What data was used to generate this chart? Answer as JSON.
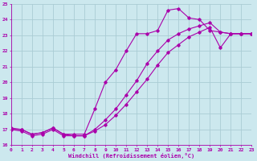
{
  "xlabel": "Windchill (Refroidissement éolien,°C)",
  "bg_color": "#cce8ee",
  "grid_color": "#aaccd4",
  "line_color": "#aa00aa",
  "xmin": 0,
  "xmax": 23,
  "ymin": 16,
  "ymax": 25,
  "line1_x": [
    0,
    1,
    2,
    3,
    4,
    5,
    6,
    7,
    8,
    9,
    10,
    11,
    12,
    13,
    14,
    15,
    16,
    17,
    18,
    19,
    20,
    21,
    22,
    23
  ],
  "line1_y": [
    17.1,
    17.0,
    16.7,
    16.8,
    17.1,
    16.7,
    16.7,
    16.7,
    18.3,
    20.0,
    20.8,
    22.0,
    23.1,
    23.1,
    23.3,
    24.6,
    24.7,
    24.1,
    24.0,
    23.3,
    23.2,
    23.1,
    23.1,
    23.1
  ],
  "line2_x": [
    0,
    1,
    2,
    3,
    4,
    5,
    6,
    7,
    8,
    9,
    10,
    11,
    12,
    13,
    14,
    15,
    16,
    17,
    18,
    19,
    20,
    21,
    22,
    23
  ],
  "line2_y": [
    17.0,
    17.0,
    16.7,
    16.8,
    17.1,
    16.7,
    16.6,
    16.6,
    17.0,
    17.6,
    18.3,
    19.2,
    20.1,
    21.2,
    22.0,
    22.7,
    23.1,
    23.4,
    23.6,
    23.8,
    23.2,
    23.1,
    23.1,
    23.1
  ],
  "line3_x": [
    0,
    1,
    2,
    3,
    4,
    5,
    6,
    7,
    8,
    9,
    10,
    11,
    12,
    13,
    14,
    15,
    16,
    17,
    18,
    19,
    20,
    21,
    22,
    23
  ],
  "line3_y": [
    17.0,
    16.9,
    16.6,
    16.7,
    17.0,
    16.6,
    16.6,
    16.6,
    16.9,
    17.3,
    17.9,
    18.6,
    19.4,
    20.2,
    21.1,
    21.9,
    22.4,
    22.9,
    23.2,
    23.5,
    22.2,
    23.1,
    23.1,
    23.1
  ]
}
